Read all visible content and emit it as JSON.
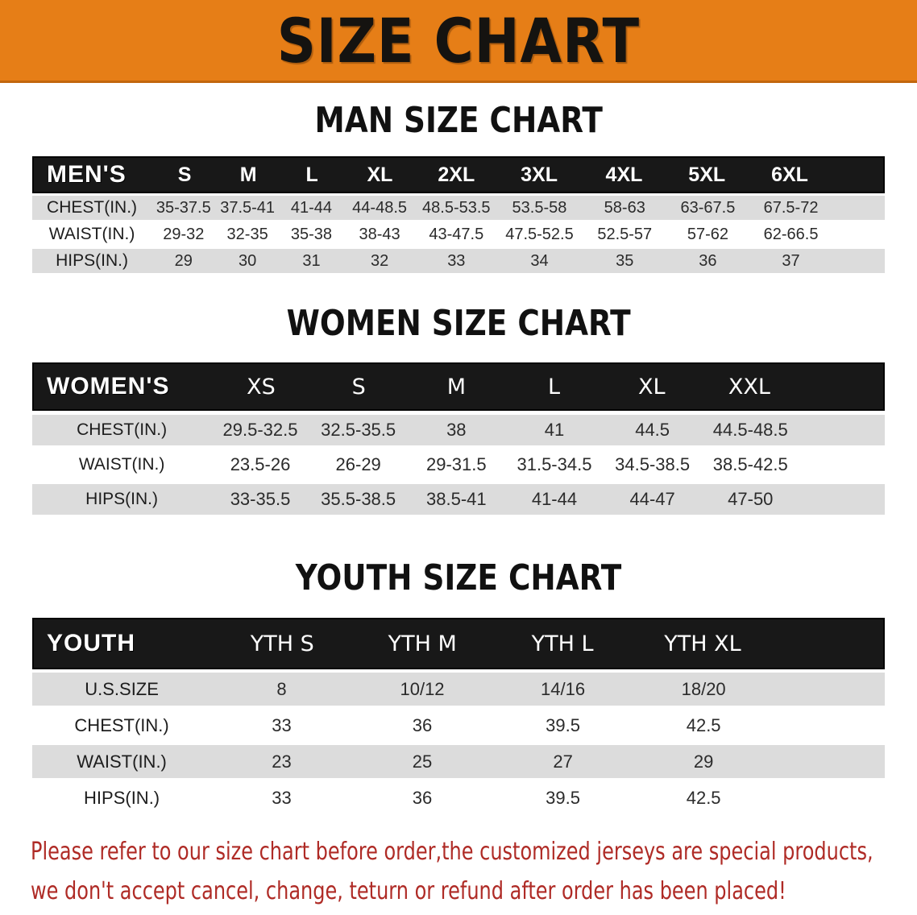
{
  "banner": {
    "title": "SIZE CHART"
  },
  "colors": {
    "banner_bg": "#E67E17",
    "banner_edge": "#C2660D",
    "header_bar": "#181818",
    "stripe": "#DCDCDC",
    "footer_red": "#AF2B26"
  },
  "men": {
    "heading": "MAN SIZE CHART",
    "header_label": "MEN'S",
    "sizes": [
      "S",
      "M",
      "L",
      "XL",
      "2XL",
      "3XL",
      "4XL",
      "5XL",
      "6XL"
    ],
    "rows": [
      {
        "label": "CHEST(IN.)",
        "values": [
          "35-37.5",
          "37.5-41",
          "41-44",
          "44-48.5",
          "48.5-53.5",
          "53.5-58",
          "58-63",
          "63-67.5",
          "67.5-72"
        ]
      },
      {
        "label": "WAIST(IN.)",
        "values": [
          "29-32",
          "32-35",
          "35-38",
          "38-43",
          "43-47.5",
          "47.5-52.5",
          "52.5-57",
          "57-62",
          "62-66.5"
        ]
      },
      {
        "label": "HIPS(IN.)",
        "values": [
          "29",
          "30",
          "31",
          "32",
          "33",
          "34",
          "35",
          "36",
          "37"
        ]
      }
    ]
  },
  "women": {
    "heading": "WOMEN SIZE CHART",
    "header_label": "WOMEN'S",
    "sizes": [
      "XS",
      "S",
      "M",
      "L",
      "XL",
      "XXL"
    ],
    "rows": [
      {
        "label": "CHEST(IN.)",
        "values": [
          "29.5-32.5",
          "32.5-35.5",
          "38",
          "41",
          "44.5",
          "44.5-48.5"
        ]
      },
      {
        "label": "WAIST(IN.)",
        "values": [
          "23.5-26",
          "26-29",
          "29-31.5",
          "31.5-34.5",
          "34.5-38.5",
          "38.5-42.5"
        ]
      },
      {
        "label": "HIPS(IN.)",
        "values": [
          "33-35.5",
          "35.5-38.5",
          "38.5-41",
          "41-44",
          "44-47",
          "47-50"
        ]
      }
    ]
  },
  "youth": {
    "heading": "YOUTH SIZE CHART",
    "header_label": "YOUTH",
    "sizes": [
      "YTH S",
      "YTH M",
      "YTH L",
      "YTH XL"
    ],
    "rows": [
      {
        "label": "U.S.SIZE",
        "values": [
          "8",
          "10/12",
          "14/16",
          "18/20"
        ]
      },
      {
        "label": "CHEST(IN.)",
        "values": [
          "33",
          "36",
          "39.5",
          "42.5"
        ]
      },
      {
        "label": "WAIST(IN.)",
        "values": [
          "23",
          "25",
          "27",
          "29"
        ]
      },
      {
        "label": "HIPS(IN.)",
        "values": [
          "33",
          "36",
          "39.5",
          "42.5"
        ]
      }
    ]
  },
  "footer": {
    "line1": "Please refer to our size chart before order,the customized jerseys are special products,",
    "line2": "we don't accept cancel, change, teturn or refund after order has been placed!"
  }
}
